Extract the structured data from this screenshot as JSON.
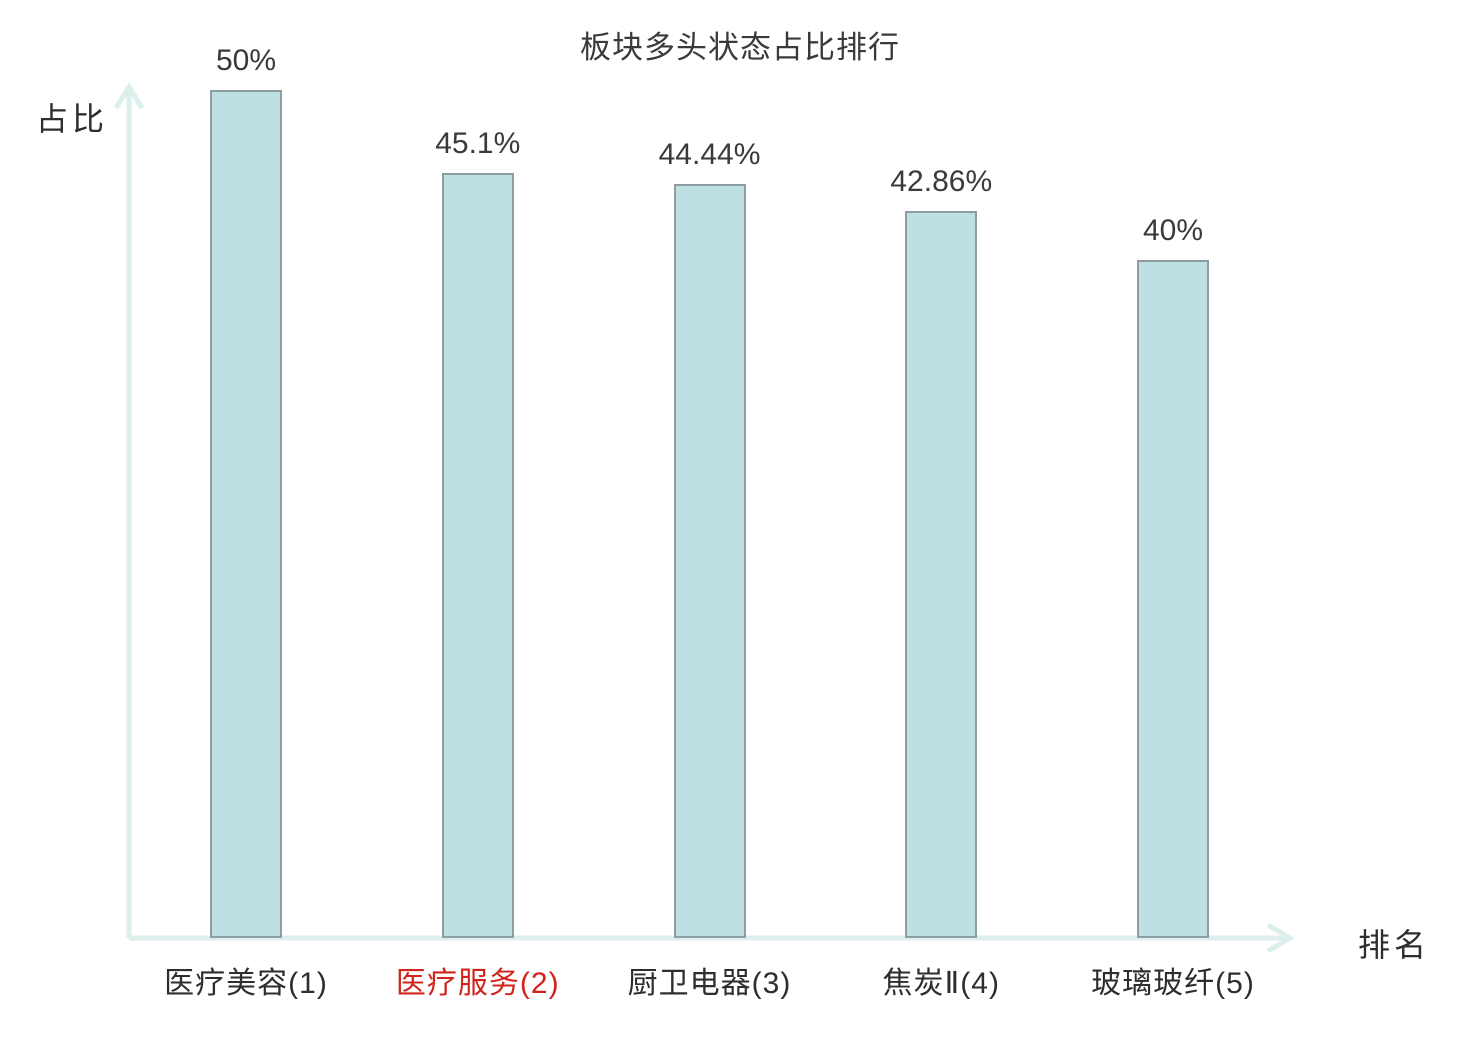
{
  "chart_data": {
    "type": "bar",
    "title": "板块多头状态占比排行",
    "xlabel": "排名",
    "ylabel": "占比",
    "categories": [
      "医疗美容(1)",
      "医疗服务(2)",
      "厨卫电器(3)",
      "焦炭Ⅱ(4)",
      "玻璃玻纤(5)"
    ],
    "values": [
      50,
      45.1,
      44.44,
      42.86,
      40
    ],
    "value_labels": [
      "50%",
      "45.1%",
      "44.44%",
      "42.86%",
      "40%"
    ],
    "highlighted_category_index": 1,
    "highlight_color": "#d0241c",
    "bar_fill": "#bfe0e2",
    "bar_border": "#8d9da0",
    "axis_color": "#dcefec",
    "text_color": "#3a3a3a",
    "ylim": [
      0,
      50
    ],
    "grid": false,
    "legend": false
  }
}
